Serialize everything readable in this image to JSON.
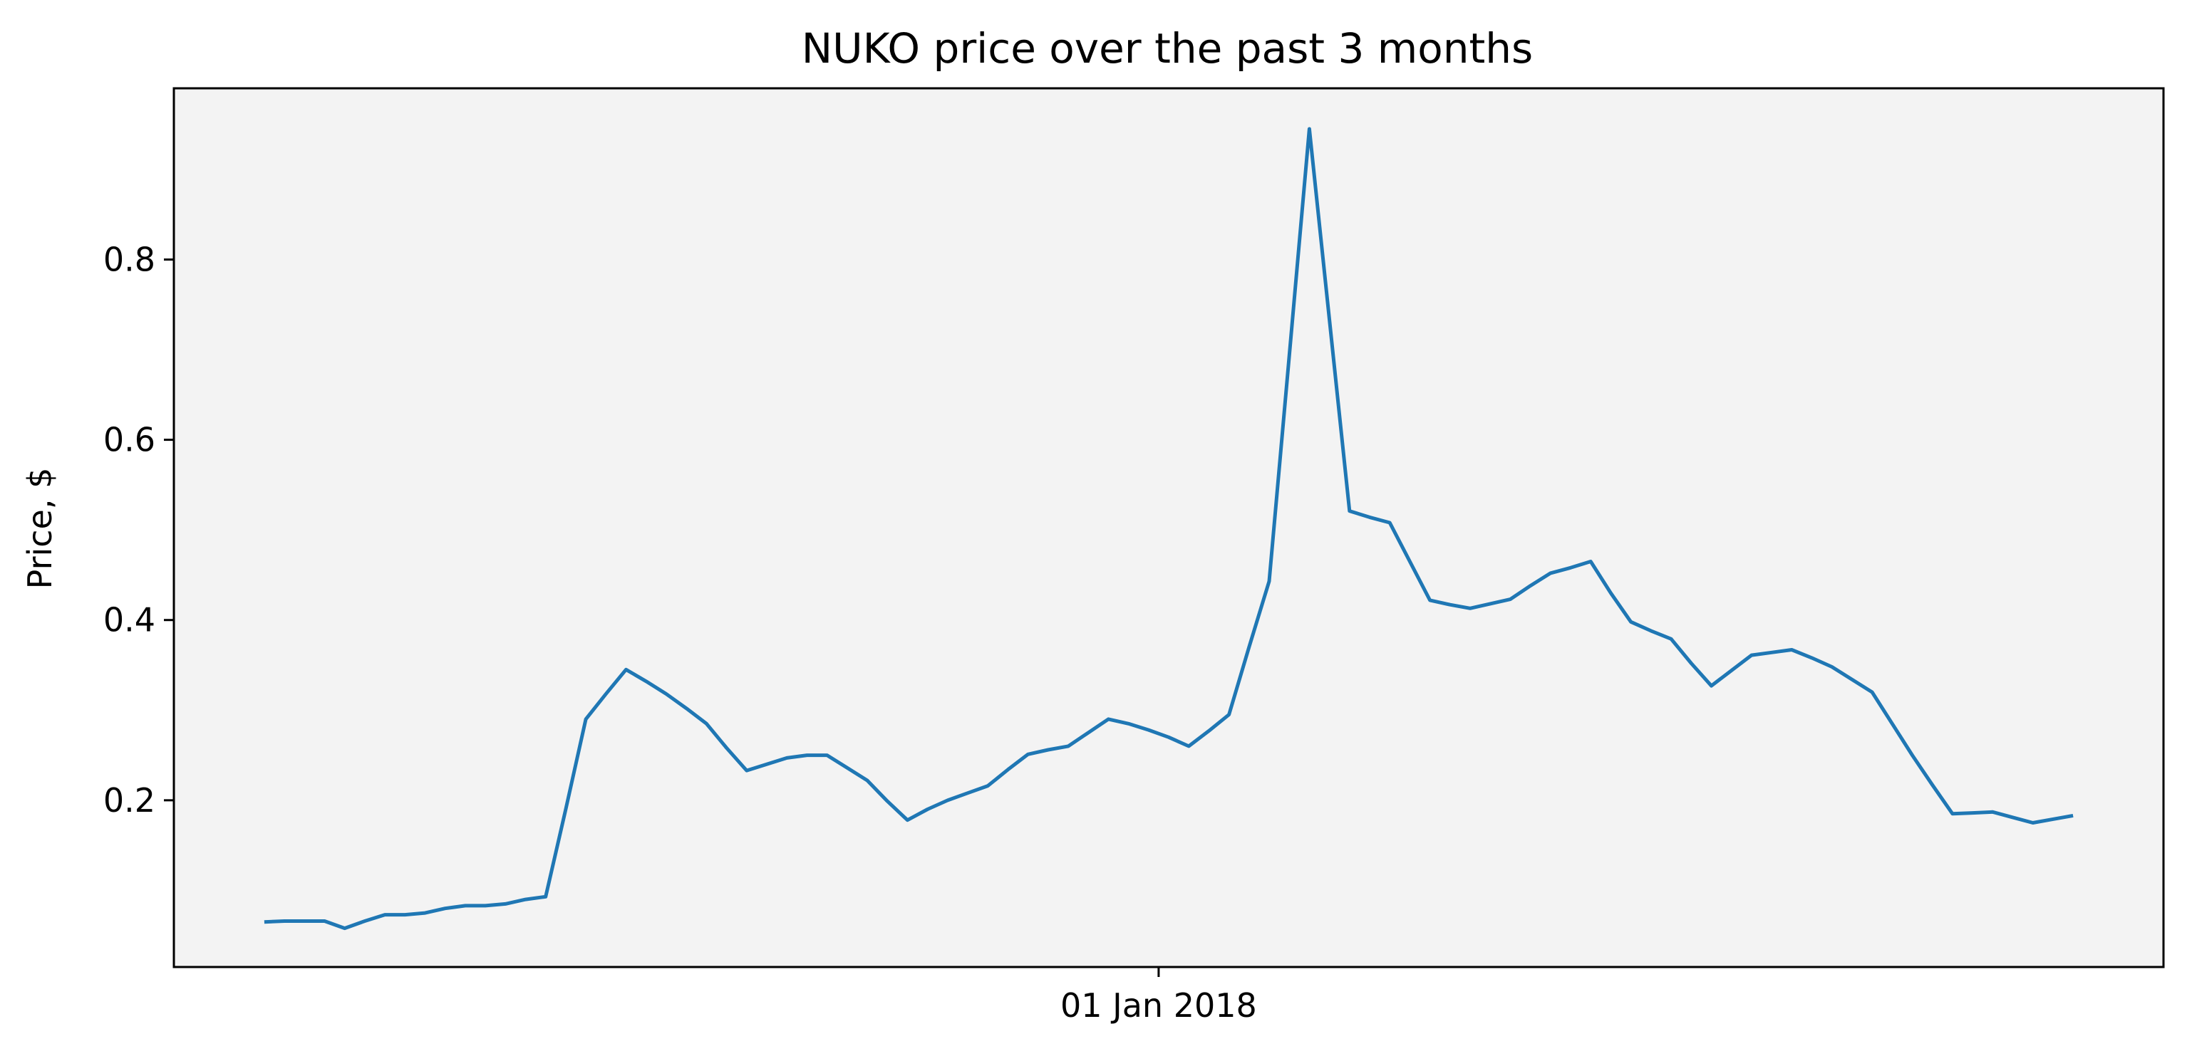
{
  "chart_data": {
    "type": "line",
    "title": "NUKO price over the past 3 months",
    "xlabel": "",
    "ylabel": "Price, $",
    "x_ticks": [
      {
        "x": "2018-01-01",
        "label": "01 Jan 2018"
      }
    ],
    "y_ticks": [
      0.2,
      0.4,
      0.6,
      0.8
    ],
    "ylim": [
      0.015,
      0.99
    ],
    "grid": false,
    "background_color": "#f3f3f3",
    "line_color": "#1f77b4",
    "series": [
      {
        "x": [
          "2017-10-04",
          "2017-10-06",
          "2017-10-08",
          "2017-10-10",
          "2017-10-12",
          "2017-10-14",
          "2017-10-16",
          "2017-10-18",
          "2017-10-20",
          "2017-10-22",
          "2017-10-24",
          "2017-10-26",
          "2017-10-28",
          "2017-10-30",
          "2017-11-01",
          "2017-11-03",
          "2017-11-05",
          "2017-11-07",
          "2017-11-09",
          "2017-11-11",
          "2017-11-13",
          "2017-11-15",
          "2017-11-17",
          "2017-11-19",
          "2017-11-21",
          "2017-11-23",
          "2017-11-25",
          "2017-11-27",
          "2017-11-29",
          "2017-12-01",
          "2017-12-03",
          "2017-12-05",
          "2017-12-07",
          "2017-12-09",
          "2017-12-11",
          "2017-12-13",
          "2017-12-15",
          "2017-12-17",
          "2017-12-19",
          "2017-12-21",
          "2017-12-23",
          "2017-12-25",
          "2017-12-27",
          "2017-12-29",
          "2017-12-31",
          "2018-01-02",
          "2018-01-04",
          "2018-01-06",
          "2018-01-08",
          "2018-01-10",
          "2018-01-12",
          "2018-01-14",
          "2018-01-16",
          "2018-01-18",
          "2018-01-20",
          "2018-01-22",
          "2018-01-24",
          "2018-01-26",
          "2018-01-28",
          "2018-01-30",
          "2018-02-01",
          "2018-02-03",
          "2018-02-05",
          "2018-02-07",
          "2018-02-09",
          "2018-02-11",
          "2018-02-13",
          "2018-02-15",
          "2018-02-17",
          "2018-02-19",
          "2018-02-21",
          "2018-02-23",
          "2018-02-25",
          "2018-02-27",
          "2018-03-01",
          "2018-03-03",
          "2018-03-05",
          "2018-03-07",
          "2018-03-09",
          "2018-03-11",
          "2018-03-13",
          "2018-03-15",
          "2018-03-17",
          "2018-03-19",
          "2018-03-21",
          "2018-03-23",
          "2018-03-25",
          "2018-03-27",
          "2018-03-29",
          "2018-03-31",
          "2018-04-02"
        ],
        "y": [
          0.065,
          0.066,
          0.066,
          0.066,
          0.058,
          0.066,
          0.073,
          0.073,
          0.075,
          0.08,
          0.083,
          0.083,
          0.085,
          0.09,
          0.093,
          0.19,
          0.29,
          0.318,
          0.345,
          0.332,
          0.318,
          0.302,
          0.285,
          0.258,
          0.233,
          0.24,
          0.247,
          0.25,
          0.25,
          0.236,
          0.222,
          0.199,
          0.178,
          0.19,
          0.2,
          0.208,
          0.216,
          0.234,
          0.251,
          0.256,
          0.26,
          0.275,
          0.29,
          0.285,
          0.278,
          0.27,
          0.26,
          0.277,
          0.295,
          0.37,
          0.443,
          0.693,
          0.945,
          0.733,
          0.521,
          0.514,
          0.508,
          0.465,
          0.422,
          0.417,
          0.413,
          0.418,
          0.423,
          0.438,
          0.452,
          0.458,
          0.465,
          0.43,
          0.398,
          0.388,
          0.379,
          0.352,
          0.327,
          0.344,
          0.361,
          0.364,
          0.367,
          0.358,
          0.348,
          0.334,
          0.32,
          0.285,
          0.25,
          0.217,
          0.185,
          0.186,
          0.187,
          0.181,
          0.175,
          0.179,
          0.183
        ]
      }
    ]
  }
}
